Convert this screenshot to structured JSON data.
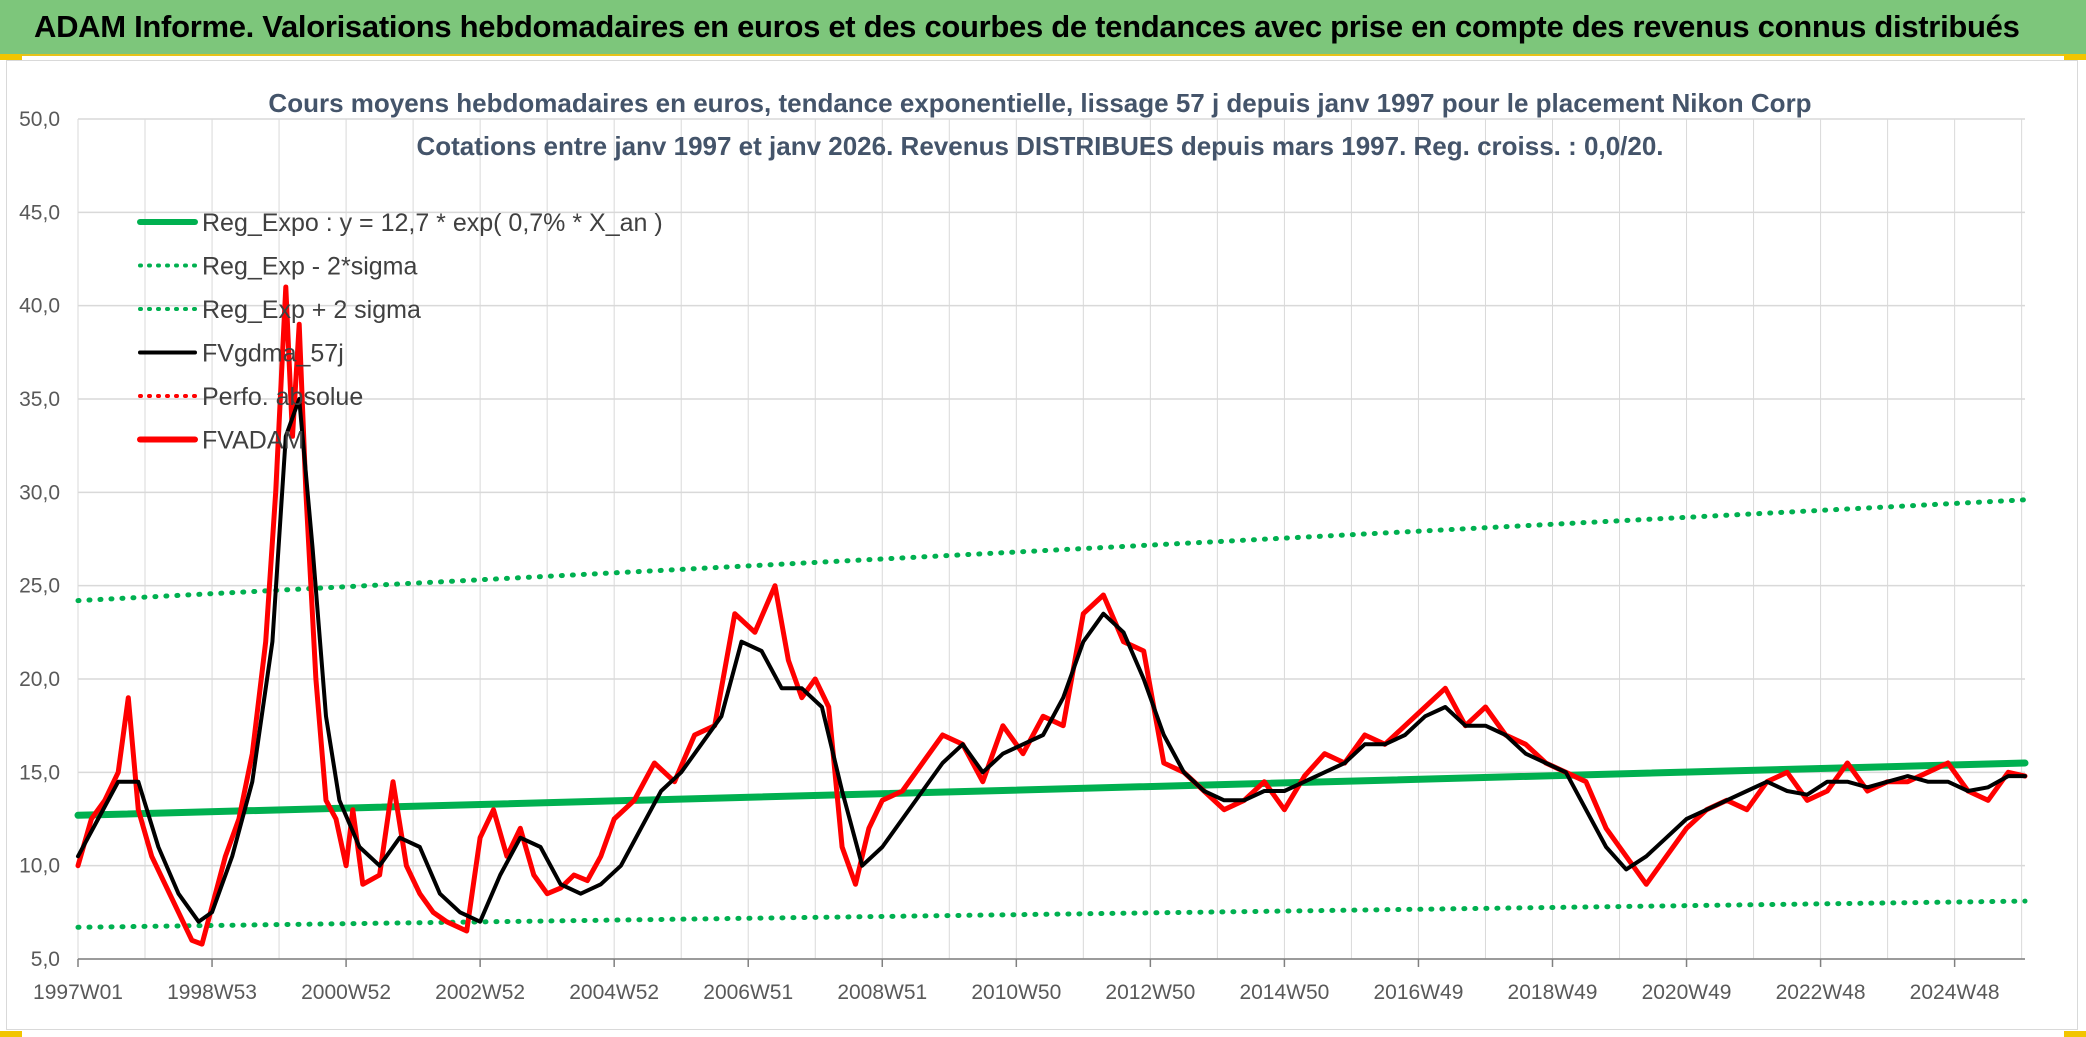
{
  "banner": {
    "title": "ADAM Informe. Valorisations hebdomadaires en euros et des courbes de tendances avec prise en compte des revenus connus distribués"
  },
  "colors": {
    "banner_bg": "#7dc67b",
    "reg_expo": "#00b050",
    "fvgdma": "#000000",
    "fvadam": "#ff0000",
    "perfo": "#ff0000",
    "grid": "#d9d9d9"
  },
  "chart_data": {
    "type": "line",
    "title_lines": [
      "Cours moyens hebdomadaires en euros, tendance exponentielle, lissage 57 j depuis janv 1997 pour le placement Nikon Corp",
      "Cotations entre janv 1997 et janv 2026. Revenus DISTRIBUES depuis mars 1997. Reg. croiss. : 0,0/20."
    ],
    "xlabel": "",
    "ylabel": "",
    "x_range": [
      1997.0,
      2026.05
    ],
    "ylim": [
      5,
      50
    ],
    "yticks": [
      "5,0",
      "10,0",
      "15,0",
      "20,0",
      "25,0",
      "30,0",
      "35,0",
      "40,0",
      "45,0",
      "50,0"
    ],
    "xticks": [
      {
        "label": "1997W01",
        "x": 1997.0
      },
      {
        "label": "1998W53",
        "x": 1999.0
      },
      {
        "label": "2000W52",
        "x": 2001.0
      },
      {
        "label": "2002W52",
        "x": 2003.0
      },
      {
        "label": "2004W52",
        "x": 2005.0
      },
      {
        "label": "2006W51",
        "x": 2007.0
      },
      {
        "label": "2008W51",
        "x": 2009.0
      },
      {
        "label": "2010W50",
        "x": 2011.0
      },
      {
        "label": "2012W50",
        "x": 2013.0
      },
      {
        "label": "2014W50",
        "x": 2015.0
      },
      {
        "label": "2016W49",
        "x": 2017.0
      },
      {
        "label": "2018W49",
        "x": 2019.0
      },
      {
        "label": "2020W49",
        "x": 2021.0
      },
      {
        "label": "2022W48",
        "x": 2023.0
      },
      {
        "label": "2024W48",
        "x": 2025.0
      }
    ],
    "legend": [
      {
        "name": "Reg_Expo : y = 12,7 * exp( 0,7% *  X_an )",
        "color": "#00b050",
        "style": "solid-thick"
      },
      {
        "name": "Reg_Exp - 2*sigma",
        "color": "#00b050",
        "style": "dotted"
      },
      {
        "name": "Reg_Exp + 2 sigma",
        "color": "#00b050",
        "style": "dotted"
      },
      {
        "name": "FVgdma_57j",
        "color": "#000000",
        "style": "solid"
      },
      {
        "name": "Perfo. absolue",
        "color": "#ff0000",
        "style": "dotted"
      },
      {
        "name": "FVADAM",
        "color": "#ff0000",
        "style": "solid-thick"
      }
    ],
    "series": [
      {
        "name": "Reg_Expo",
        "x": [
          1997.0,
          2026.05
        ],
        "values": [
          12.7,
          15.5
        ]
      },
      {
        "name": "Reg_Exp - 2*sigma",
        "x": [
          1997.0,
          2026.05
        ],
        "values": [
          6.7,
          8.1
        ]
      },
      {
        "name": "Reg_Exp + 2 sigma",
        "x": [
          1997.0,
          2026.05
        ],
        "values": [
          24.2,
          29.6
        ]
      },
      {
        "name": "FVADAM",
        "x": [
          1997.0,
          1997.2,
          1997.4,
          1997.6,
          1997.75,
          1997.9,
          1998.1,
          1998.3,
          1998.5,
          1998.7,
          1998.85,
          1999.0,
          1999.2,
          1999.4,
          1999.6,
          1999.8,
          1999.95,
          2000.1,
          2000.2,
          2000.3,
          2000.4,
          2000.55,
          2000.7,
          2000.85,
          2001.0,
          2001.1,
          2001.25,
          2001.5,
          2001.7,
          2001.9,
          2002.1,
          2002.3,
          2002.5,
          2002.8,
          2003.0,
          2003.2,
          2003.4,
          2003.6,
          2003.8,
          2004.0,
          2004.2,
          2004.4,
          2004.6,
          2004.8,
          2005.0,
          2005.3,
          2005.6,
          2005.9,
          2006.2,
          2006.5,
          2006.8,
          2007.1,
          2007.4,
          2007.6,
          2007.8,
          2008.0,
          2008.2,
          2008.4,
          2008.6,
          2008.8,
          2009.0,
          2009.3,
          2009.6,
          2009.9,
          2010.2,
          2010.5,
          2010.8,
          2011.1,
          2011.4,
          2011.7,
          2012.0,
          2012.3,
          2012.6,
          2012.9,
          2013.2,
          2013.5,
          2013.8,
          2014.1,
          2014.4,
          2014.7,
          2015.0,
          2015.3,
          2015.6,
          2015.9,
          2016.2,
          2016.5,
          2016.8,
          2017.1,
          2017.4,
          2017.7,
          2018.0,
          2018.3,
          2018.6,
          2018.9,
          2019.2,
          2019.5,
          2019.8,
          2020.1,
          2020.4,
          2020.7,
          2021.0,
          2021.3,
          2021.6,
          2021.9,
          2022.2,
          2022.5,
          2022.8,
          2023.1,
          2023.4,
          2023.7,
          2024.0,
          2024.3,
          2024.6,
          2024.9,
          2025.2,
          2025.5,
          2025.8,
          2026.05
        ],
        "values": [
          10.0,
          12.5,
          13.5,
          15.0,
          19.0,
          13.0,
          10.5,
          9.0,
          7.5,
          6.0,
          5.8,
          7.8,
          10.5,
          12.5,
          16.0,
          22.0,
          30.0,
          41.0,
          33.0,
          39.0,
          30.0,
          20.0,
          13.5,
          12.5,
          10.0,
          13.0,
          9.0,
          9.5,
          14.5,
          10.0,
          8.5,
          7.5,
          7.0,
          6.5,
          11.5,
          13.0,
          10.5,
          12.0,
          9.5,
          8.5,
          8.8,
          9.5,
          9.2,
          10.5,
          12.5,
          13.5,
          15.5,
          14.5,
          17.0,
          17.5,
          23.5,
          22.5,
          25.0,
          21.0,
          19.0,
          20.0,
          18.5,
          11.0,
          9.0,
          12.0,
          13.5,
          14.0,
          15.5,
          17.0,
          16.5,
          14.5,
          17.5,
          16.0,
          18.0,
          17.5,
          23.5,
          24.5,
          22.0,
          21.5,
          15.5,
          15.0,
          14.0,
          13.0,
          13.5,
          14.5,
          13.0,
          14.8,
          16.0,
          15.5,
          17.0,
          16.5,
          17.5,
          18.5,
          19.5,
          17.5,
          18.5,
          17.0,
          16.5,
          15.5,
          15.0,
          14.5,
          12.0,
          10.5,
          9.0,
          10.5,
          12.0,
          13.0,
          13.5,
          13.0,
          14.5,
          15.0,
          13.5,
          14.0,
          15.5,
          14.0,
          14.5,
          14.5,
          15.0,
          15.5,
          14.0,
          13.5,
          15.0,
          14.8
        ]
      },
      {
        "name": "FVgdma_57j",
        "x": [
          1997.0,
          1997.3,
          1997.6,
          1997.9,
          1998.2,
          1998.5,
          1998.8,
          1999.0,
          1999.3,
          1999.6,
          1999.9,
          2000.1,
          2000.3,
          2000.5,
          2000.7,
          2000.9,
          2001.2,
          2001.5,
          2001.8,
          2002.1,
          2002.4,
          2002.7,
          2003.0,
          2003.3,
          2003.6,
          2003.9,
          2004.2,
          2004.5,
          2004.8,
          2005.1,
          2005.4,
          2005.7,
          2006.0,
          2006.3,
          2006.6,
          2006.9,
          2007.2,
          2007.5,
          2007.8,
          2008.1,
          2008.4,
          2008.7,
          2009.0,
          2009.3,
          2009.6,
          2009.9,
          2010.2,
          2010.5,
          2010.8,
          2011.1,
          2011.4,
          2011.7,
          2012.0,
          2012.3,
          2012.6,
          2012.9,
          2013.2,
          2013.5,
          2013.8,
          2014.1,
          2014.4,
          2014.7,
          2015.0,
          2015.3,
          2015.6,
          2015.9,
          2016.2,
          2016.5,
          2016.8,
          2017.1,
          2017.4,
          2017.7,
          2018.0,
          2018.3,
          2018.6,
          2018.9,
          2019.2,
          2019.5,
          2019.8,
          2020.1,
          2020.4,
          2020.7,
          2021.0,
          2021.3,
          2021.6,
          2021.9,
          2022.2,
          2022.5,
          2022.8,
          2023.1,
          2023.4,
          2023.7,
          2024.0,
          2024.3,
          2024.6,
          2024.9,
          2025.2,
          2025.5,
          2025.8,
          2026.05
        ],
        "values": [
          10.5,
          12.5,
          14.5,
          14.5,
          11.0,
          8.5,
          7.0,
          7.5,
          10.5,
          14.5,
          22.0,
          33.0,
          35.0,
          27.0,
          18.0,
          13.5,
          11.0,
          10.0,
          11.5,
          11.0,
          8.5,
          7.5,
          7.0,
          9.5,
          11.5,
          11.0,
          9.0,
          8.5,
          9.0,
          10.0,
          12.0,
          14.0,
          15.0,
          16.5,
          18.0,
          22.0,
          21.5,
          19.5,
          19.5,
          18.5,
          14.0,
          10.0,
          11.0,
          12.5,
          14.0,
          15.5,
          16.5,
          15.0,
          16.0,
          16.5,
          17.0,
          19.0,
          22.0,
          23.5,
          22.5,
          20.0,
          17.0,
          15.0,
          14.0,
          13.5,
          13.5,
          14.0,
          14.0,
          14.5,
          15.0,
          15.5,
          16.5,
          16.5,
          17.0,
          18.0,
          18.5,
          17.5,
          17.5,
          17.0,
          16.0,
          15.5,
          15.0,
          13.0,
          11.0,
          9.8,
          10.5,
          11.5,
          12.5,
          13.0,
          13.5,
          14.0,
          14.5,
          14.0,
          13.8,
          14.5,
          14.5,
          14.2,
          14.5,
          14.8,
          14.5,
          14.5,
          14.0,
          14.2,
          14.8,
          14.8
        ]
      }
    ]
  }
}
